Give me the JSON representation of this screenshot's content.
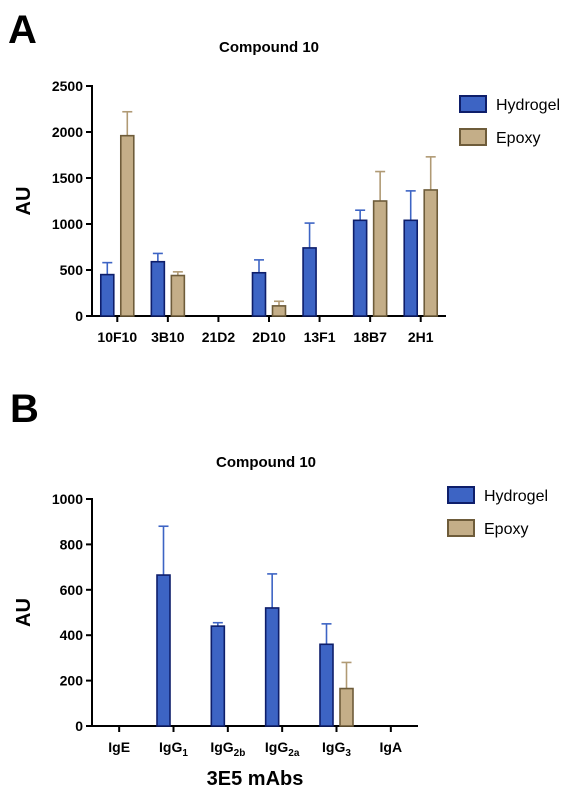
{
  "panels": {
    "a": {
      "letter": "A"
    },
    "b": {
      "letter": "B"
    }
  },
  "colors": {
    "hydrogel_fill": "#3d64c4",
    "hydrogel_stroke": "#0e1e6a",
    "epoxy_fill": "#c4ae88",
    "epoxy_stroke": "#6e5c3a",
    "hydrogel_error": "#3d64c4",
    "epoxy_error": "#b09a74",
    "axis": "#000000"
  },
  "chart_data": [
    {
      "type": "bar",
      "title": "Compound 10",
      "xlabel": "",
      "ylabel": "AU",
      "ylim": [
        0,
        2500
      ],
      "yticks": [
        "0",
        "500",
        "1000",
        "1500",
        "2000",
        "2500"
      ],
      "legend": "right",
      "categories": [
        "10F10",
        "3B10",
        "21D2",
        "2D10",
        "13F1",
        "18B7",
        "2H1"
      ],
      "series": [
        {
          "name": "Hydrogel",
          "values": [
            450,
            590,
            null,
            470,
            740,
            1040,
            1040
          ],
          "errors": [
            130,
            90,
            null,
            140,
            270,
            110,
            320
          ]
        },
        {
          "name": "Epoxy",
          "values": [
            1960,
            440,
            null,
            110,
            null,
            1250,
            1370
          ],
          "errors": [
            260,
            40,
            null,
            50,
            null,
            320,
            360
          ]
        }
      ]
    },
    {
      "type": "bar",
      "title": "Compound 10",
      "xlabel": "3E5 mAbs",
      "ylabel": "AU",
      "ylim": [
        0,
        1000
      ],
      "yticks": [
        "0",
        "200",
        "400",
        "600",
        "800",
        "1000"
      ],
      "legend": "right",
      "categories": [
        {
          "base": "IgE",
          "sub": ""
        },
        {
          "base": "IgG",
          "sub": "1"
        },
        {
          "base": "IgG",
          "sub": "2b"
        },
        {
          "base": "IgG",
          "sub": "2a"
        },
        {
          "base": "IgG",
          "sub": "3"
        },
        {
          "base": "IgA",
          "sub": ""
        }
      ],
      "series": [
        {
          "name": "Hydrogel",
          "values": [
            null,
            665,
            440,
            520,
            360,
            null
          ],
          "errors": [
            null,
            215,
            15,
            150,
            90,
            null
          ]
        },
        {
          "name": "Epoxy",
          "values": [
            null,
            null,
            null,
            null,
            165,
            null
          ],
          "errors": [
            null,
            null,
            null,
            null,
            115,
            null
          ]
        }
      ]
    }
  ]
}
